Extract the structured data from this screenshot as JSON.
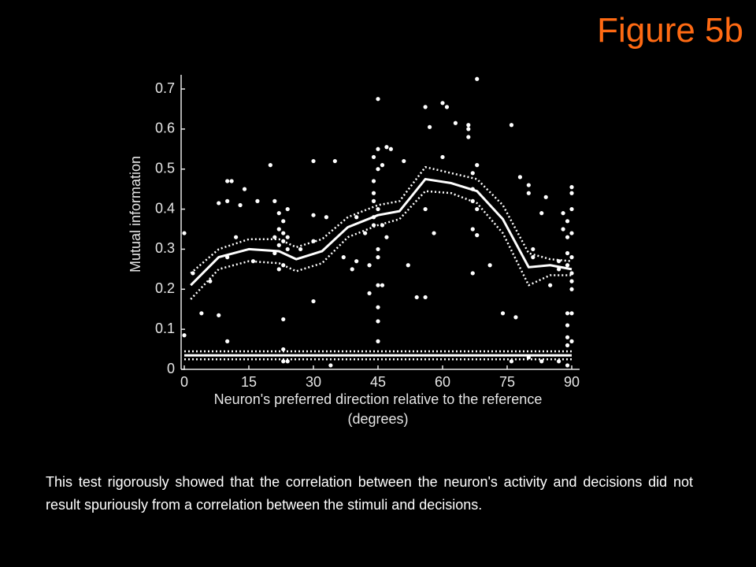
{
  "slide_title": "Figure 5b",
  "caption": "This test rigorously showed that the correlation between the neuron's activity and decisions did not result spuriously from a correlation between the stimuli and decisions.",
  "chart_data": {
    "type": "line",
    "ylabel": "Mutual information",
    "xlabel": [
      "Neuron's preferred direction relative to the reference",
      "(degrees)"
    ],
    "xlim": [
      0,
      90
    ],
    "ylim": [
      0,
      0.7
    ],
    "xticks": [
      0,
      15,
      30,
      45,
      60,
      75,
      90
    ],
    "yticks": [
      0,
      0.1,
      0.2,
      0.3,
      0.4,
      0.5,
      0.6,
      0.7
    ],
    "series": [
      {
        "color": "#ffffff",
        "line_style": "none",
        "marker": "dot",
        "x": [
          0,
          0,
          2,
          4,
          6,
          8,
          8,
          10,
          10,
          10,
          10,
          11,
          12,
          13,
          14,
          16,
          17,
          20,
          21,
          21,
          21,
          22,
          22,
          22,
          22,
          23,
          23,
          23,
          23,
          23,
          23,
          23,
          24,
          24,
          24,
          24,
          27,
          30,
          30,
          30,
          30,
          33,
          34,
          35,
          37,
          39,
          40,
          40,
          42,
          43,
          43,
          44,
          44,
          44,
          44,
          44,
          44,
          45,
          45,
          45,
          45,
          45,
          45,
          45,
          45,
          45,
          45,
          46,
          46,
          46,
          47,
          47,
          48,
          51,
          52,
          54,
          56,
          56,
          56,
          57,
          58,
          60,
          60,
          61,
          63,
          66,
          66,
          66,
          67,
          67,
          67,
          67,
          67,
          68,
          68,
          68,
          68,
          71,
          74,
          76,
          76,
          77,
          78,
          80,
          80,
          80,
          81,
          81,
          83,
          83,
          84,
          85,
          87,
          87,
          87,
          88,
          88,
          89,
          89,
          89,
          89,
          89,
          89,
          89,
          89,
          89,
          90,
          90,
          90,
          90,
          90,
          90,
          90,
          90,
          90,
          90
        ],
        "values": [
          0.34,
          0.085,
          0.24,
          0.14,
          0.22,
          0.135,
          0.415,
          0.47,
          0.42,
          0.07,
          0.28,
          0.47,
          0.33,
          0.41,
          0.45,
          0.27,
          0.42,
          0.51,
          0.42,
          0.29,
          0.33,
          0.39,
          0.35,
          0.31,
          0.25,
          0.37,
          0.34,
          0.32,
          0.26,
          0.125,
          0.05,
          0.02,
          0.4,
          0.33,
          0.3,
          0.02,
          0.3,
          0.52,
          0.385,
          0.17,
          0.32,
          0.38,
          0.01,
          0.52,
          0.28,
          0.25,
          0.27,
          0.38,
          0.34,
          0.26,
          0.19,
          0.53,
          0.47,
          0.44,
          0.42,
          0.38,
          0.36,
          0.675,
          0.55,
          0.5,
          0.4,
          0.3,
          0.28,
          0.21,
          0.155,
          0.12,
          0.07,
          0.51,
          0.36,
          0.21,
          0.555,
          0.33,
          0.55,
          0.52,
          0.26,
          0.18,
          0.655,
          0.4,
          0.18,
          0.605,
          0.34,
          0.665,
          0.53,
          0.655,
          0.615,
          0.61,
          0.6,
          0.58,
          0.49,
          0.45,
          0.42,
          0.35,
          0.24,
          0.725,
          0.51,
          0.4,
          0.335,
          0.26,
          0.14,
          0.61,
          0.02,
          0.13,
          0.48,
          0.46,
          0.44,
          0.03,
          0.3,
          0.28,
          0.39,
          0.02,
          0.43,
          0.21,
          0.25,
          0.27,
          0.02,
          0.39,
          0.35,
          0.37,
          0.33,
          0.29,
          0.26,
          0.14,
          0.11,
          0.08,
          0.06,
          0.01,
          0.455,
          0.44,
          0.4,
          0.34,
          0.28,
          0.24,
          0.22,
          0.2,
          0.14,
          0.07
        ]
      },
      {
        "color": "#ffffff",
        "line_style": "solid",
        "x": [
          1.5,
          8,
          15,
          22,
          26,
          32,
          38,
          45,
          50,
          56,
          62,
          68,
          74,
          80,
          85,
          90
        ],
        "values": [
          0.21,
          0.28,
          0.3,
          0.295,
          0.275,
          0.295,
          0.355,
          0.385,
          0.395,
          0.475,
          0.465,
          0.445,
          0.375,
          0.255,
          0.26,
          0.25
        ]
      },
      {
        "color": "#ffffff",
        "line_style": "dotted",
        "x": [
          1.5,
          8,
          15,
          22,
          26,
          32,
          38,
          45,
          50,
          56,
          62,
          68,
          74,
          80,
          85,
          90
        ],
        "values": [
          0.24,
          0.3,
          0.325,
          0.325,
          0.305,
          0.325,
          0.38,
          0.41,
          0.42,
          0.505,
          0.49,
          0.475,
          0.41,
          0.29,
          0.275,
          0.27
        ]
      },
      {
        "color": "#ffffff",
        "line_style": "dotted",
        "x": [
          1.5,
          8,
          15,
          22,
          26,
          32,
          38,
          45,
          50,
          56,
          62,
          68,
          74,
          80,
          85,
          90
        ],
        "values": [
          0.175,
          0.25,
          0.27,
          0.265,
          0.245,
          0.265,
          0.33,
          0.36,
          0.375,
          0.445,
          0.44,
          0.415,
          0.34,
          0.21,
          0.235,
          0.235
        ]
      },
      {
        "color": "#ffffff",
        "line_style": "dotted",
        "x": [
          0,
          90
        ],
        "values": [
          0.045,
          0.045
        ]
      },
      {
        "color": "#ffffff",
        "line_style": "solid",
        "x": [
          0,
          90
        ],
        "values": [
          0.035,
          0.035
        ]
      },
      {
        "color": "#ffffff",
        "line_style": "dotted",
        "x": [
          0,
          90
        ],
        "values": [
          0.025,
          0.025
        ]
      }
    ]
  }
}
